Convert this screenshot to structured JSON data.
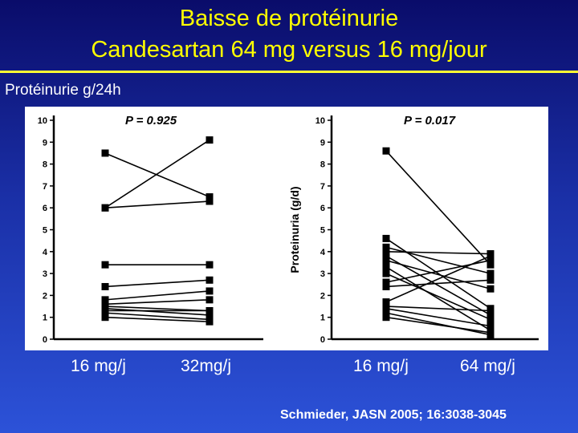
{
  "title": {
    "line1": "Baisse de protéinurie",
    "line2": "Candesartan 64 mg versus 16 mg/jour"
  },
  "y_unit_label": "Protéinurie g/24h",
  "x_labels": [
    "16 mg/j",
    "32mg/j",
    "16 mg/j",
    "64 mg/j"
  ],
  "citation": "Schmieder, JASN 2005; 16:3038-3045",
  "colors": {
    "title": "#ffff00",
    "text": "#ffffff",
    "plot_ink": "#000000",
    "rule": "#ffff33"
  },
  "chart_data": [
    {
      "type": "line",
      "title": "P = 0.925",
      "ylabel": "",
      "ylim": [
        0,
        10
      ],
      "yticks": [
        0,
        1,
        2,
        3,
        4,
        5,
        6,
        7,
        8,
        9,
        10
      ],
      "categories": [
        "16 mg/j",
        "32mg/j"
      ],
      "series": [
        {
          "values": [
            8.5,
            6.5
          ]
        },
        {
          "values": [
            6.0,
            9.1
          ]
        },
        {
          "values": [
            6.0,
            6.3
          ]
        },
        {
          "values": [
            3.4,
            3.4
          ]
        },
        {
          "values": [
            2.4,
            2.7
          ]
        },
        {
          "values": [
            1.8,
            2.2
          ]
        },
        {
          "values": [
            1.6,
            1.8
          ]
        },
        {
          "values": [
            1.5,
            1.3
          ]
        },
        {
          "values": [
            1.4,
            1.1
          ]
        },
        {
          "values": [
            1.3,
            1.3
          ]
        },
        {
          "values": [
            1.2,
            0.9
          ]
        },
        {
          "values": [
            1.0,
            0.8
          ]
        }
      ]
    },
    {
      "type": "line",
      "title": "P = 0.017",
      "ylabel": "Proteinuria (g/d)",
      "ylim": [
        0,
        10
      ],
      "yticks": [
        0,
        1,
        2,
        3,
        4,
        5,
        6,
        7,
        8,
        9,
        10
      ],
      "categories": [
        "16 mg/j",
        "64 mg/j"
      ],
      "series": [
        {
          "values": [
            8.6,
            3.4
          ]
        },
        {
          "values": [
            4.6,
            1.4
          ]
        },
        {
          "values": [
            4.2,
            3.0
          ]
        },
        {
          "values": [
            4.0,
            3.9
          ]
        },
        {
          "values": [
            3.8,
            1.1
          ]
        },
        {
          "values": [
            3.6,
            2.3
          ]
        },
        {
          "values": [
            3.3,
            0.4
          ]
        },
        {
          "values": [
            3.0,
            0.9
          ]
        },
        {
          "values": [
            2.6,
            3.6
          ]
        },
        {
          "values": [
            2.4,
            2.7
          ]
        },
        {
          "values": [
            1.7,
            3.8
          ]
        },
        {
          "values": [
            1.5,
            1.3
          ]
        },
        {
          "values": [
            1.4,
            0.6
          ]
        },
        {
          "values": [
            1.2,
            0.2
          ]
        },
        {
          "values": [
            1.0,
            0.3
          ]
        }
      ]
    }
  ]
}
